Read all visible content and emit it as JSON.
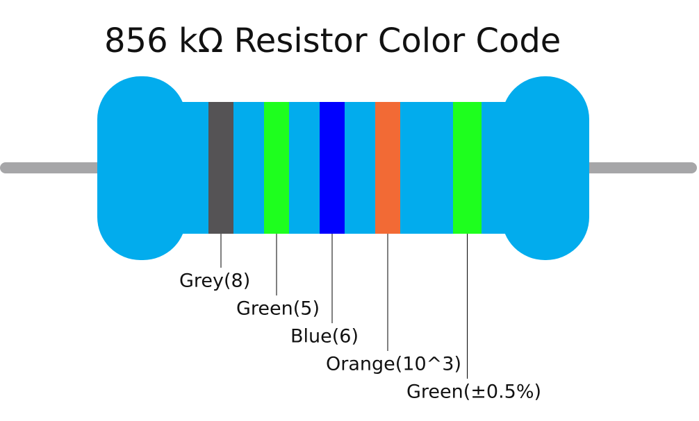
{
  "title": "856 kΩ Resistor Color Code",
  "bands": [
    {
      "label": "Grey(8)",
      "color": "#555355"
    },
    {
      "label": "Green(5)",
      "color": "#1eff1e"
    },
    {
      "label": "Blue(6)",
      "color": "#0000ff"
    },
    {
      "label": "Orange(10^3)",
      "color": "#f26a35"
    },
    {
      "label": "Green(±0.5%)",
      "color": "#1eff1e"
    }
  ]
}
